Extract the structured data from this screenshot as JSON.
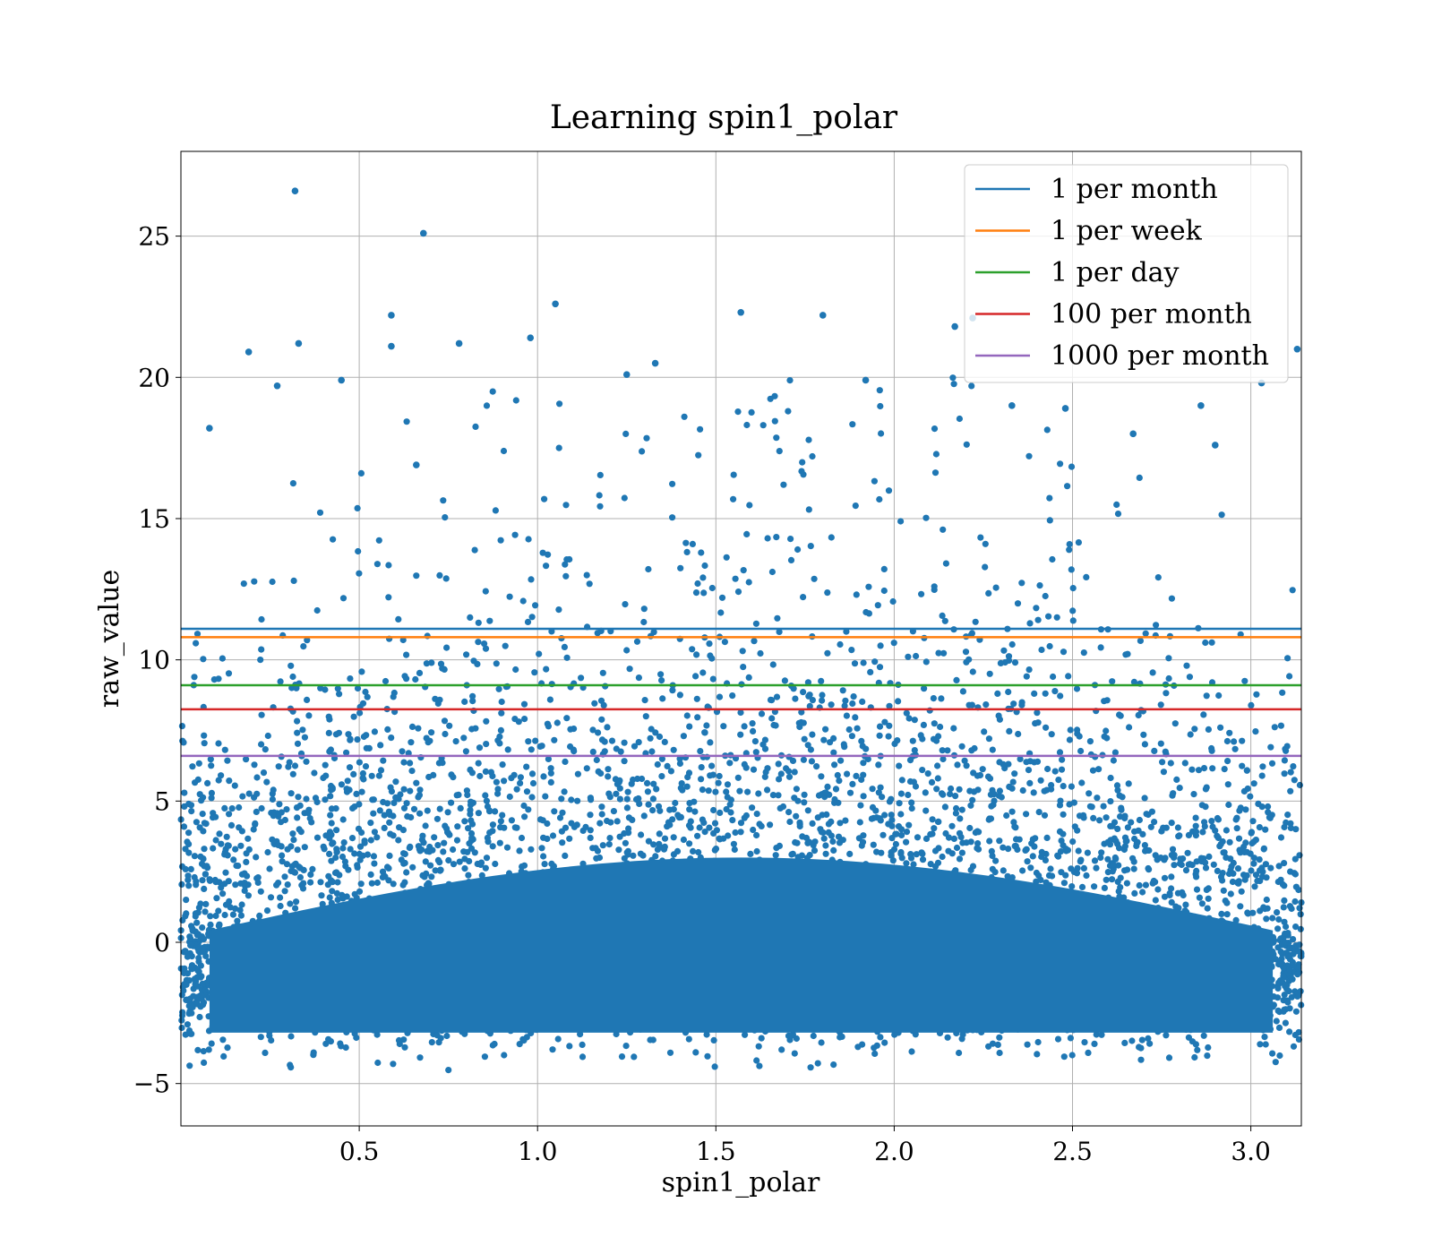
{
  "chart_data": {
    "type": "scatter",
    "title": "Learning spin1_polar",
    "xlabel": "spin1_polar",
    "ylabel": "raw_value",
    "xlim": [
      0.0,
      3.1416
    ],
    "ylim": [
      -6.5,
      28
    ],
    "xticks": [
      0.5,
      1.0,
      1.5,
      2.0,
      2.5,
      3.0
    ],
    "xtick_labels": [
      "0.5",
      "1.0",
      "1.5",
      "2.0",
      "2.5",
      "3.0"
    ],
    "yticks": [
      -5,
      0,
      5,
      10,
      15,
      20,
      25
    ],
    "ytick_labels": [
      "−5",
      "0",
      "5",
      "10",
      "15",
      "20",
      "25"
    ],
    "grid": true,
    "legend_position": "top-right",
    "scatter_color": "#1f77b4",
    "scatter_note": "dense cloud of ~100k points; core between y≈−4.5 and y≈3, sparse tail up to y≈20, density peaking near x≈1.57",
    "outliers": [
      {
        "x": 0.32,
        "y": 26.6
      },
      {
        "x": 0.68,
        "y": 25.1
      },
      {
        "x": 1.05,
        "y": 22.6
      },
      {
        "x": 0.59,
        "y": 22.2
      },
      {
        "x": 1.57,
        "y": 22.3
      },
      {
        "x": 1.8,
        "y": 22.2
      },
      {
        "x": 2.22,
        "y": 22.1
      },
      {
        "x": 2.17,
        "y": 21.8
      },
      {
        "x": 0.33,
        "y": 21.2
      },
      {
        "x": 0.59,
        "y": 21.1
      },
      {
        "x": 0.98,
        "y": 21.4
      },
      {
        "x": 0.19,
        "y": 20.9
      },
      {
        "x": 0.78,
        "y": 21.2
      },
      {
        "x": 1.33,
        "y": 20.5
      },
      {
        "x": 3.13,
        "y": 21.0
      },
      {
        "x": 3.03,
        "y": 19.8
      },
      {
        "x": 2.86,
        "y": 19.0
      },
      {
        "x": 0.08,
        "y": 18.2
      },
      {
        "x": 2.9,
        "y": 17.6
      },
      {
        "x": 2.67,
        "y": 18.0
      },
      {
        "x": 0.66,
        "y": 16.9
      },
      {
        "x": 2.33,
        "y": 19.0
      },
      {
        "x": 2.48,
        "y": 18.9
      },
      {
        "x": 0.27,
        "y": 19.7
      },
      {
        "x": 0.45,
        "y": 19.9
      },
      {
        "x": 1.25,
        "y": 20.1
      },
      {
        "x": 1.92,
        "y": 19.9
      }
    ],
    "hlines": [
      {
        "name": "1 per month",
        "y": 11.1,
        "color": "#1f77b4"
      },
      {
        "name": "1 per week",
        "y": 10.8,
        "color": "#ff7f0e"
      },
      {
        "name": "1 per day",
        "y": 9.1,
        "color": "#2ca02c"
      },
      {
        "name": "100 per month",
        "y": 8.25,
        "color": "#d62728"
      },
      {
        "name": "1000 per month",
        "y": 6.6,
        "color": "#9467bd"
      }
    ]
  }
}
